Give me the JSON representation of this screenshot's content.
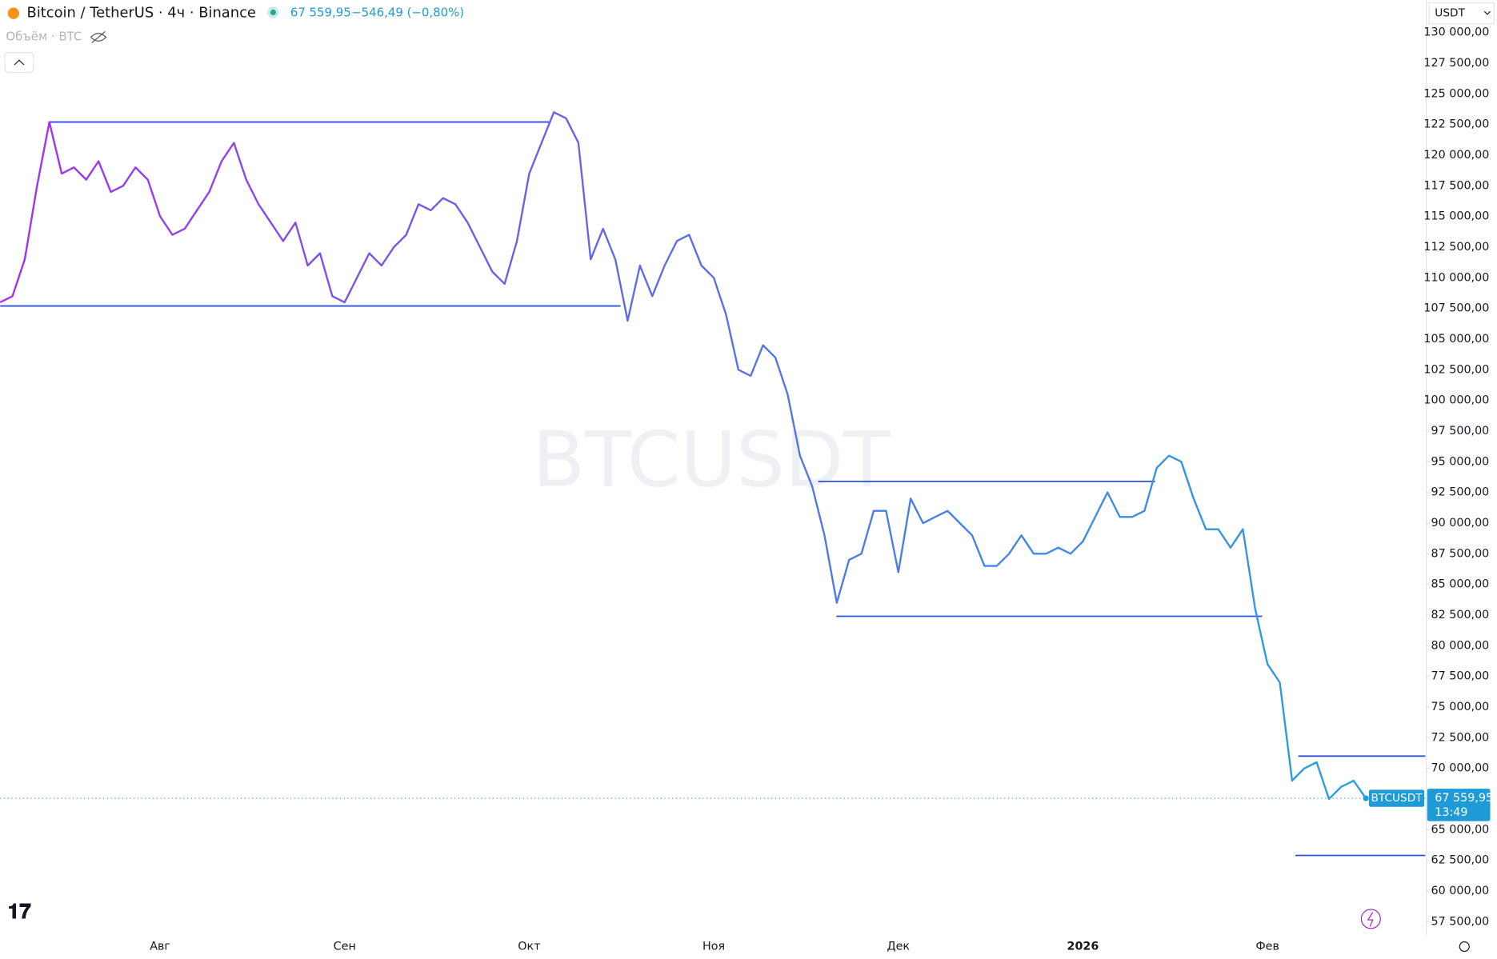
{
  "chart_data": {
    "type": "line",
    "symbol": "Bitcoin / TetherUS · 4ч · Binance",
    "last_price": "67 559,95",
    "change": "−546,49 (−0,80%)",
    "volume_label": "Объём · BTC",
    "watermark": "BTCUSDT",
    "currency": "USDT",
    "price_tag": "BTCUSDT",
    "price_label": "67 559,95",
    "countdown": "13:49",
    "categories": [
      null,
      null,
      null,
      null,
      null,
      null,
      null,
      null,
      null,
      null,
      null,
      null,
      null,
      "Авг",
      null,
      null,
      null,
      null,
      null,
      null,
      null,
      null,
      null,
      null,
      null,
      null,
      null,
      null,
      "Сен",
      null,
      null,
      null,
      null,
      null,
      null,
      null,
      null,
      null,
      null,
      null,
      null,
      null,
      null,
      "Окт",
      null,
      null,
      null,
      null,
      null,
      null,
      null,
      null,
      null,
      null,
      null,
      null,
      null,
      null,
      "Ноя",
      null,
      null,
      null,
      null,
      null,
      null,
      null,
      null,
      null,
      null,
      null,
      null,
      null,
      null,
      "Дек",
      null,
      null,
      null,
      null,
      null,
      null,
      null,
      null,
      null,
      null,
      null,
      null,
      null,
      null,
      "2026",
      null,
      null,
      null,
      null,
      null,
      null,
      null,
      null,
      null,
      null,
      null,
      null,
      null,
      null,
      "Фев",
      null,
      null,
      null,
      null,
      null,
      null,
      null,
      null
    ],
    "series": [
      {
        "name": "BTCUSDT",
        "colors": [
          "#a52ff2",
          "#5b6fe3",
          "#2a9fe0"
        ],
        "values": [
          108000,
          108500,
          111500,
          117500,
          122700,
          118500,
          119000,
          118000,
          119500,
          117000,
          117500,
          119000,
          118000,
          115000,
          113500,
          114000,
          115500,
          117000,
          119500,
          121000,
          118000,
          116000,
          114500,
          113000,
          114500,
          111000,
          112000,
          108500,
          108000,
          110000,
          112000,
          111000,
          112500,
          113500,
          116000,
          115500,
          116500,
          116000,
          114500,
          112500,
          110500,
          109500,
          113000,
          118500,
          121000,
          123500,
          123000,
          121000,
          111500,
          114000,
          111500,
          106500,
          111000,
          108500,
          111000,
          113000,
          113500,
          111000,
          110000,
          107000,
          102500,
          102000,
          104500,
          103500,
          100500,
          95500,
          93000,
          89000,
          83500,
          87000,
          87500,
          91000,
          91000,
          86000,
          92000,
          90000,
          90500,
          91000,
          90000,
          89000,
          86500,
          86500,
          87500,
          89000,
          87500,
          87500,
          88000,
          87500,
          88500,
          90500,
          92500,
          90500,
          90500,
          91000,
          94500,
          95500,
          95000,
          92000,
          89500,
          89500,
          88000,
          89500,
          83000,
          78500,
          77000,
          69000,
          70000,
          70500,
          67500,
          68500,
          69000,
          67559.95
        ]
      }
    ],
    "levels": [
      122700,
      107700,
      93400,
      82400,
      71000,
      62900
    ],
    "level_color": "#2f4fd8",
    "ylim": [
      56400,
      132650
    ],
    "yticks": [
      {
        "value": 57500,
        "label": "57 500,00"
      },
      {
        "value": 60000,
        "label": "60 000,00"
      },
      {
        "value": 62500,
        "label": "62 500,00"
      },
      {
        "value": 65000,
        "label": "65 000,00"
      },
      {
        "value": 67500,
        "label": "67 500,00"
      },
      {
        "value": 70000,
        "label": "70 000,00"
      },
      {
        "value": 72500,
        "label": "72 500,00"
      },
      {
        "value": 75000,
        "label": "75 000,00"
      },
      {
        "value": 77500,
        "label": "77 500,00"
      },
      {
        "value": 80000,
        "label": "80 000,00"
      },
      {
        "value": 82500,
        "label": "82 500,00"
      },
      {
        "value": 85000,
        "label": "85 000,00"
      },
      {
        "value": 87500,
        "label": "87 500,00"
      },
      {
        "value": 90000,
        "label": "90 000,00"
      },
      {
        "value": 92500,
        "label": "92 500,00"
      },
      {
        "value": 95000,
        "label": "95 000,00"
      },
      {
        "value": 97500,
        "label": "97 500,00"
      },
      {
        "value": 100000,
        "label": "100 000,00"
      },
      {
        "value": 102500,
        "label": "102 500,00"
      },
      {
        "value": 105000,
        "label": "105 000,00"
      },
      {
        "value": 107500,
        "label": "107 500,00"
      },
      {
        "value": 110000,
        "label": "110 000,00"
      },
      {
        "value": 112500,
        "label": "112 500,00"
      },
      {
        "value": 115000,
        "label": "115 000,00"
      },
      {
        "value": 117500,
        "label": "117 500,00"
      },
      {
        "value": 120000,
        "label": "120 000,00"
      },
      {
        "value": 122500,
        "label": "122 500,00"
      },
      {
        "value": 125000,
        "label": "125 000,00"
      },
      {
        "value": 127500,
        "label": "127 500,00"
      },
      {
        "value": 130000,
        "label": "130 000,00"
      }
    ],
    "accent_color": "#1e9bd7"
  }
}
